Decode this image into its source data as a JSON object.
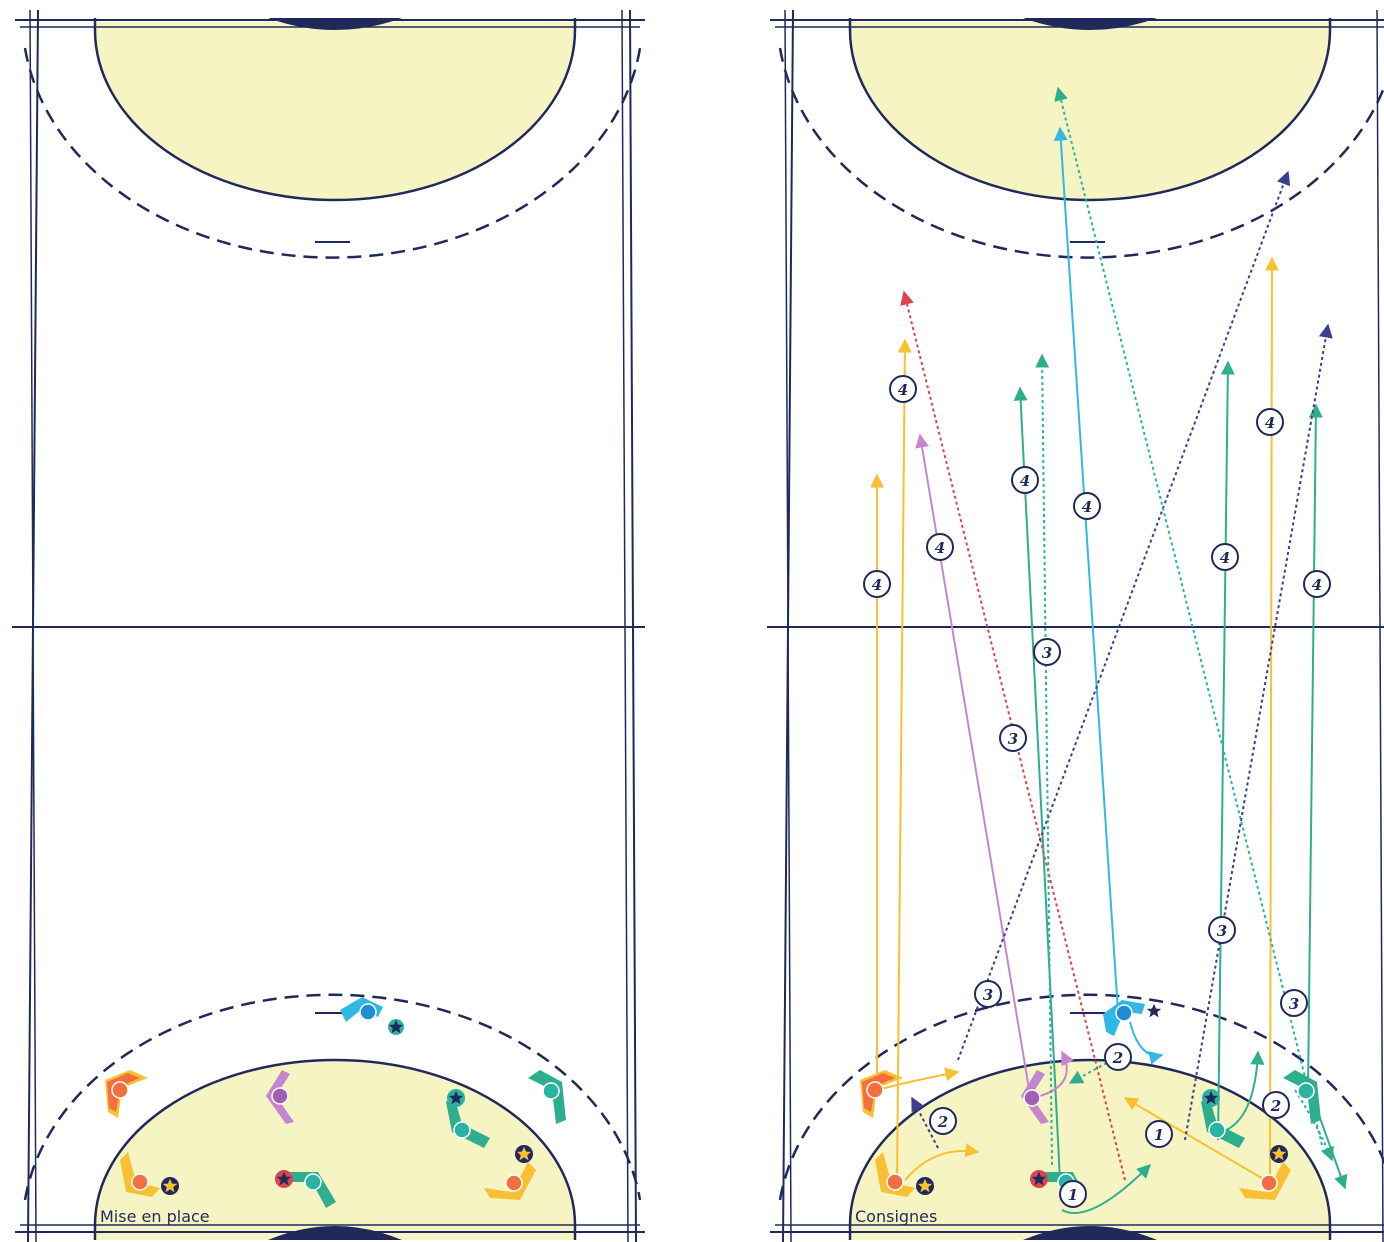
{
  "colors": {
    "line": "#1f2a5a",
    "area": "#f7f4c4",
    "orange": "#f36f3f",
    "yellow": "#f8c032",
    "purple": "#c487cf",
    "teal": "#2ab3a3",
    "green": "#2fae8e",
    "blue": "#1e8dd1",
    "cyan": "#33b8e6",
    "red": "#d94650",
    "navy": "#3c3f8e"
  },
  "panels": {
    "left": {
      "label": "Mise en place"
    },
    "right": {
      "label": "Consignes"
    }
  },
  "steps": {
    "one": "1",
    "two": "2",
    "three": "3",
    "four": "4"
  },
  "icons": {
    "player": "player-circle-icon",
    "cone": "cone-chevron-icon",
    "ball": "ball-star-icon"
  }
}
